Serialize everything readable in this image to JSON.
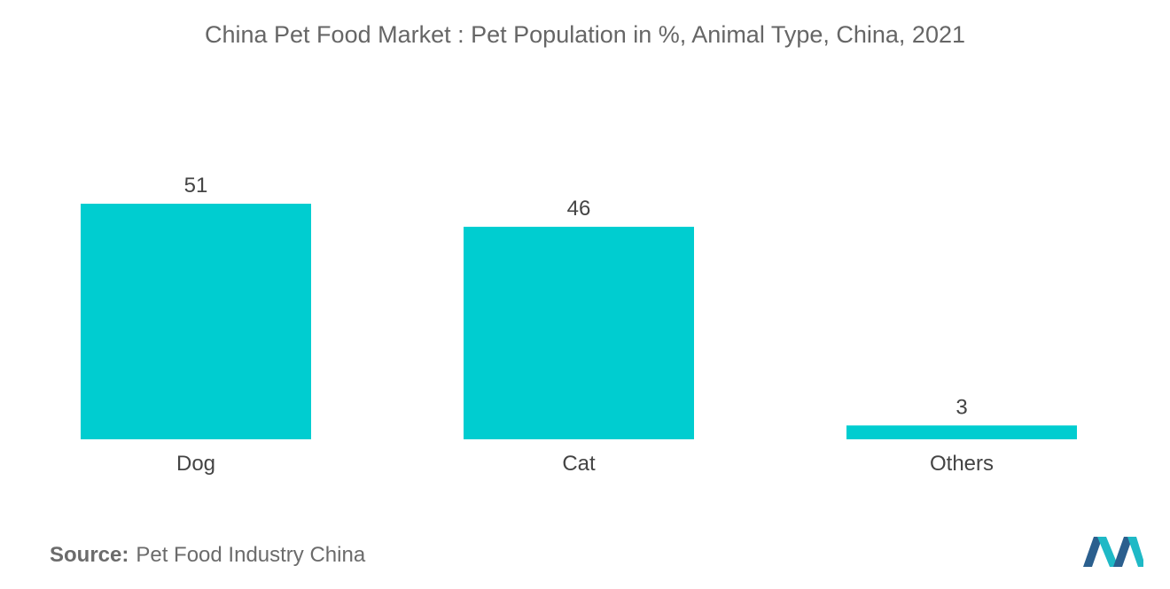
{
  "chart_data": {
    "type": "bar",
    "title": "China Pet Food Market : Pet Population in %, Animal Type, China, 2021",
    "categories": [
      "Dog",
      "Cat",
      "Others"
    ],
    "values": [
      51,
      46,
      3
    ],
    "data_labels": [
      "51",
      "46",
      "3"
    ],
    "xlabel": "",
    "ylabel": "",
    "ylim": [
      0,
      51
    ],
    "grid": false,
    "legend": "none",
    "bar_color": "#00CDD0"
  },
  "source": {
    "label": "Source:",
    "text": "Pet Food Industry China"
  },
  "logo": {
    "icon": "mordor-intelligence-logo",
    "colors": [
      "#2B5F8E",
      "#1FB9C6"
    ]
  }
}
